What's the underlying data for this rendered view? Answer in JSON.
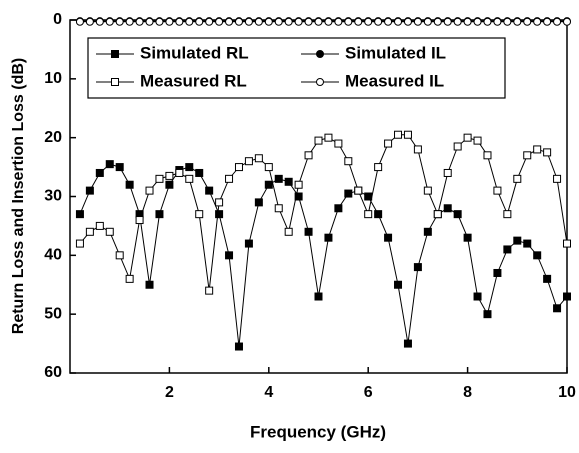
{
  "chart_data": {
    "type": "line",
    "x_label": "Frequency (GHz)",
    "y_label": "Return Loss and Insertion Loss (dB)",
    "xlim": [
      0,
      10
    ],
    "ylim": [
      60,
      0
    ],
    "xticks": [
      2,
      4,
      6,
      8,
      10
    ],
    "yticks": [
      0,
      10,
      20,
      30,
      40,
      50,
      60
    ],
    "legend": "top-left",
    "x": [
      0.2,
      0.4,
      0.6,
      0.8,
      1.0,
      1.2,
      1.4,
      1.6,
      1.8,
      2.0,
      2.2,
      2.4,
      2.6,
      2.8,
      3.0,
      3.2,
      3.4,
      3.6,
      3.8,
      4.0,
      4.2,
      4.4,
      4.6,
      4.8,
      5.0,
      5.2,
      5.4,
      5.6,
      5.8,
      6.0,
      6.2,
      6.4,
      6.6,
      6.8,
      7.0,
      7.2,
      7.4,
      7.6,
      7.8,
      8.0,
      8.2,
      8.4,
      8.6,
      8.8,
      9.0,
      9.2,
      9.4,
      9.6,
      9.8,
      10.0
    ],
    "series": [
      {
        "name": "Simulated RL",
        "color": "#000000",
        "marker": "square",
        "filled": true,
        "values": [
          33,
          29,
          26,
          24.5,
          25,
          28,
          33,
          45,
          33,
          28,
          25.5,
          25,
          26,
          29,
          33,
          40,
          55.5,
          38,
          31,
          28,
          27,
          27.5,
          30,
          36,
          47,
          37,
          32,
          29.5,
          29,
          30,
          33,
          37,
          45,
          55,
          42,
          36,
          33,
          32,
          33,
          37,
          47,
          50,
          43,
          39,
          37.5,
          38,
          40,
          44,
          49,
          47
        ]
      },
      {
        "name": "Simulated IL",
        "color": "#000000",
        "marker": "circle",
        "filled": true,
        "values": [
          0.2,
          0.2,
          0.2,
          0.2,
          0.2,
          0.2,
          0.2,
          0.2,
          0.2,
          0.2,
          0.2,
          0.2,
          0.2,
          0.2,
          0.2,
          0.2,
          0.2,
          0.2,
          0.2,
          0.2,
          0.2,
          0.2,
          0.2,
          0.2,
          0.2,
          0.2,
          0.2,
          0.2,
          0.2,
          0.2,
          0.2,
          0.2,
          0.2,
          0.2,
          0.2,
          0.2,
          0.2,
          0.2,
          0.2,
          0.2,
          0.2,
          0.2,
          0.2,
          0.2,
          0.2,
          0.2,
          0.2,
          0.2,
          0.2,
          0.2
        ]
      },
      {
        "name": "Measured RL",
        "color": "#000000",
        "marker": "square",
        "filled": false,
        "values": [
          38,
          36,
          35,
          36,
          40,
          44,
          34,
          29,
          27,
          26.5,
          26,
          27,
          33,
          46,
          31,
          27,
          25,
          24,
          23.5,
          25,
          32,
          36,
          28,
          23,
          20.5,
          20,
          21,
          24,
          29,
          33,
          25,
          21,
          19.5,
          19.5,
          22,
          29,
          33,
          26,
          21.5,
          20,
          20.5,
          23,
          29,
          33,
          27,
          23,
          22,
          22.5,
          27,
          38
        ]
      },
      {
        "name": "Measured IL",
        "color": "#000000",
        "marker": "circle",
        "filled": false,
        "values": [
          0.3,
          0.3,
          0.3,
          0.3,
          0.3,
          0.3,
          0.3,
          0.3,
          0.3,
          0.3,
          0.3,
          0.3,
          0.3,
          0.3,
          0.3,
          0.3,
          0.3,
          0.3,
          0.3,
          0.3,
          0.3,
          0.3,
          0.3,
          0.3,
          0.3,
          0.3,
          0.3,
          0.3,
          0.3,
          0.3,
          0.3,
          0.3,
          0.3,
          0.3,
          0.3,
          0.3,
          0.3,
          0.3,
          0.3,
          0.3,
          0.3,
          0.3,
          0.3,
          0.3,
          0.3,
          0.3,
          0.3,
          0.3,
          0.3,
          0.3
        ]
      }
    ]
  }
}
